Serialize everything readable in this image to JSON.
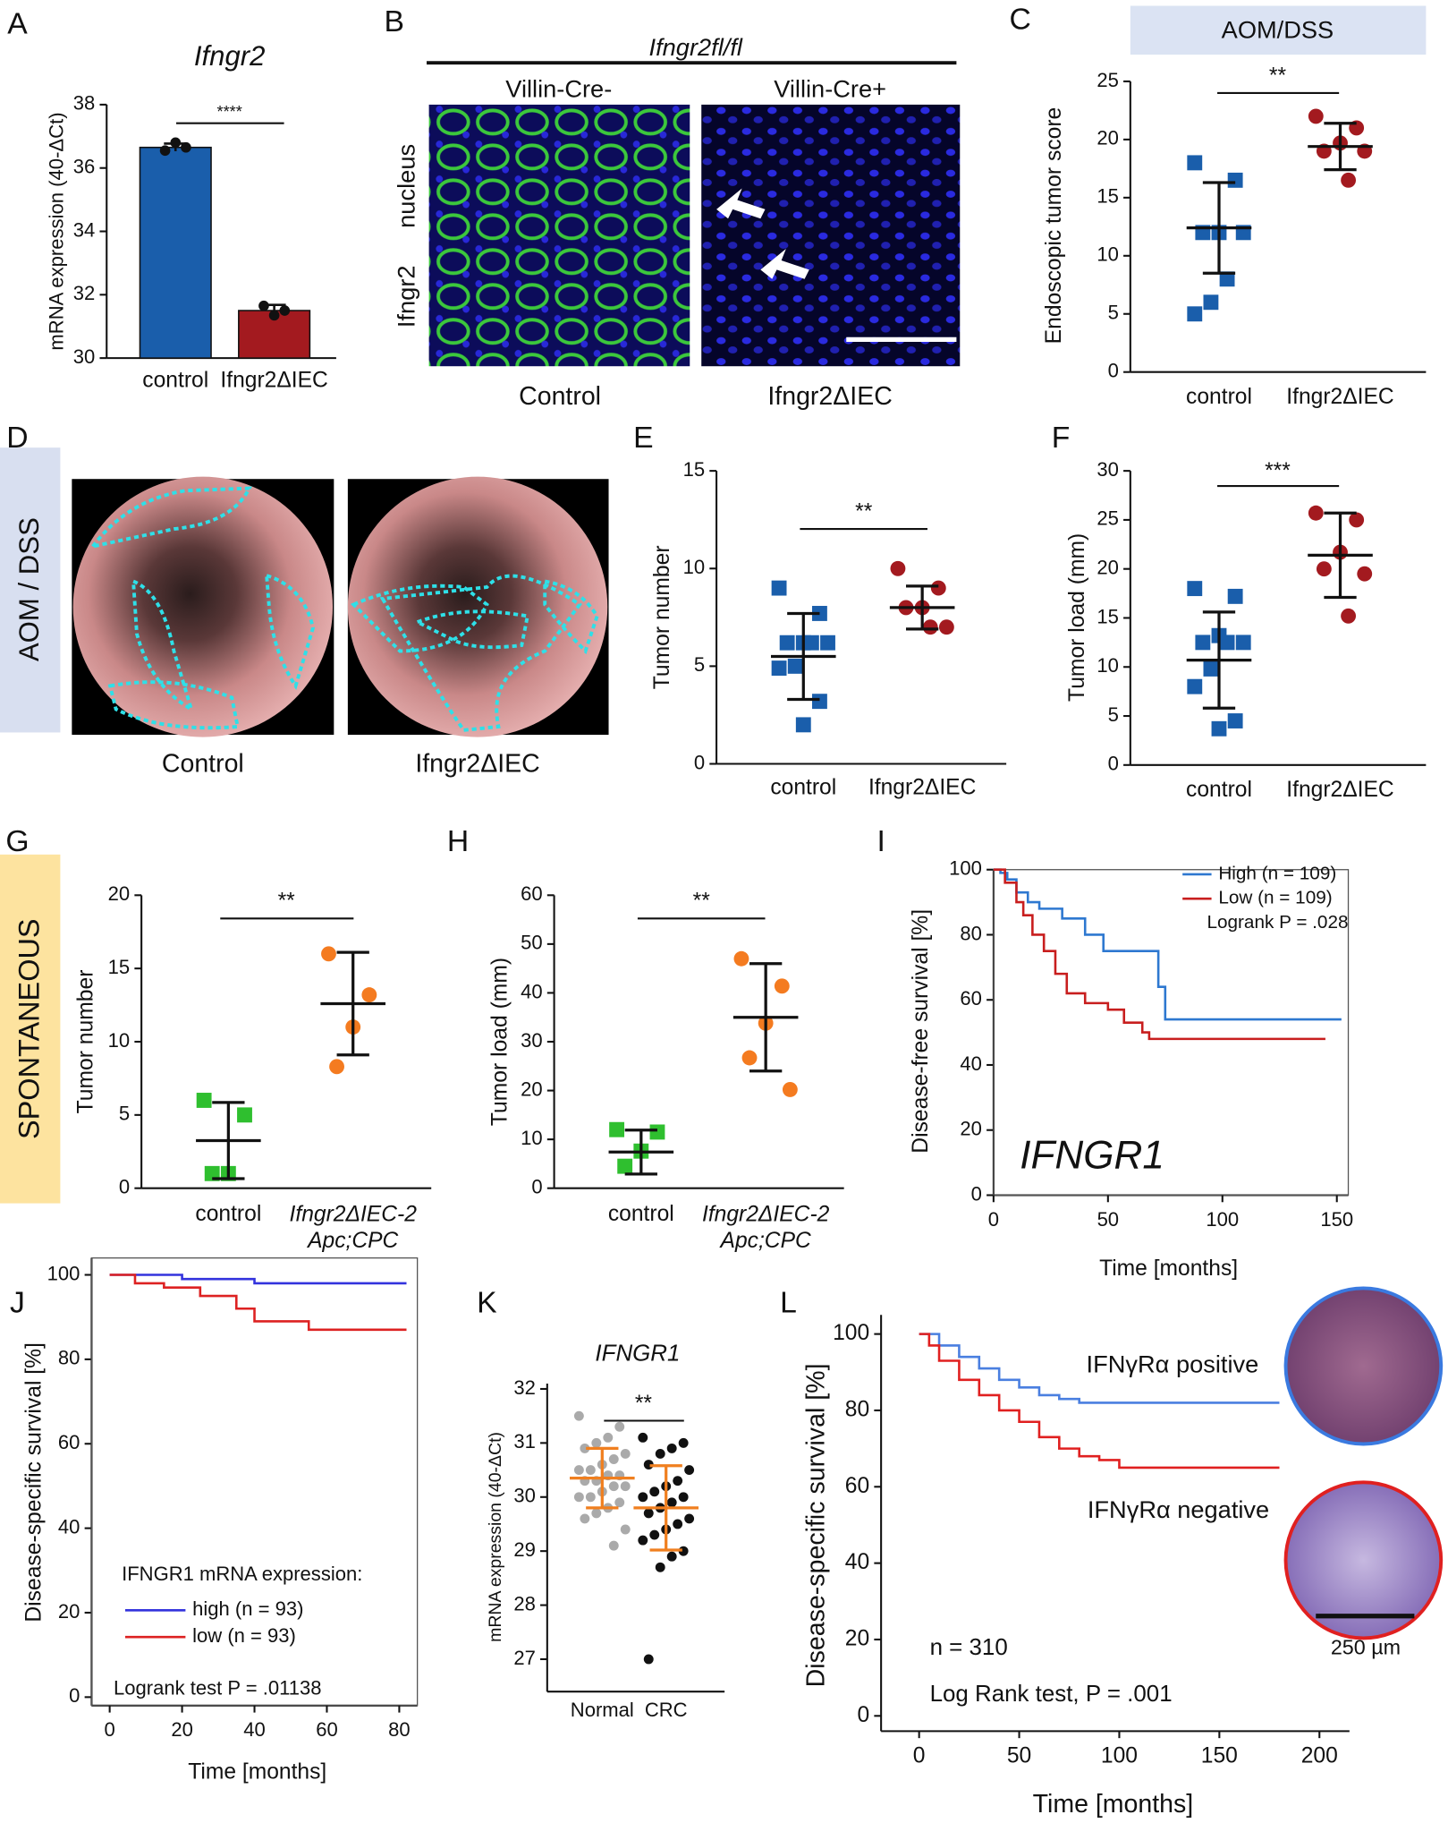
{
  "chart_data": [
    {
      "type": "bar",
      "panel": "A",
      "title": "Ifngr2",
      "y_label": "mRNA expression (40-ΔCt)",
      "categories": [
        "control",
        "Ifngr2ΔIEC"
      ],
      "values": [
        36.65,
        31.5
      ],
      "errors": [
        0.12,
        0.18
      ],
      "points": [
        [
          36.55,
          36.8,
          36.65
        ],
        [
          31.65,
          31.35,
          31.5
        ]
      ],
      "colors": [
        "#1a5eab",
        "#a31a1f"
      ],
      "ylim": [
        30,
        38
      ],
      "yticks": [
        30,
        32,
        34,
        36,
        38
      ],
      "significance": "****"
    },
    {
      "type": "image",
      "panel": "B",
      "header": "Ifngr2fl/fl",
      "titles": [
        "Villin-Cre-",
        "Villin-Cre+"
      ],
      "channel_labels": [
        "Ifngr2",
        "nucleus"
      ],
      "channel_colors": [
        "#2bb52b",
        "#2222cc"
      ],
      "captions": [
        "Control",
        "Ifngr2ΔIEC"
      ],
      "caption_colors": [
        "#2a72c0",
        "#c0282b"
      ]
    },
    {
      "type": "dot",
      "panel": "C",
      "header": "AOM/DSS",
      "y_label": "Endoscopic tumor score",
      "categories": [
        "control",
        "Ifngr2ΔIEC"
      ],
      "points": [
        [
          18,
          16.5,
          12,
          12,
          12,
          8,
          6,
          5
        ],
        [
          22,
          21,
          19.7,
          19,
          19,
          16.5
        ]
      ],
      "means": [
        12.4,
        19.4
      ],
      "sds": [
        3.9,
        2.0
      ],
      "colors": [
        "#1a5eab",
        "#a31a1f"
      ],
      "markers": [
        "square",
        "circle"
      ],
      "ylim": [
        0,
        25
      ],
      "yticks": [
        0,
        5,
        10,
        15,
        20,
        25
      ],
      "significance": "**"
    },
    {
      "type": "image",
      "panel": "D",
      "side_label": "AOM / DSS",
      "captions": [
        "Control",
        "Ifngr2ΔIEC"
      ],
      "caption_colors": [
        "#2a72c0",
        "#c0282b"
      ]
    },
    {
      "type": "dot",
      "panel": "E",
      "y_label": "Tumor number",
      "categories": [
        "control",
        "Ifngr2ΔIEC"
      ],
      "points": [
        [
          9,
          7.7,
          6.2,
          6.2,
          6.2,
          6.2,
          5,
          4.9,
          3.2,
          2
        ],
        [
          10,
          9,
          8,
          8,
          7,
          7
        ]
      ],
      "means": [
        5.5,
        8.0
      ],
      "sds": [
        2.2,
        1.1
      ],
      "colors": [
        "#1a5eab",
        "#a31a1f"
      ],
      "markers": [
        "square",
        "circle"
      ],
      "ylim": [
        0,
        15
      ],
      "yticks": [
        0,
        5,
        10,
        15
      ],
      "significance": "**"
    },
    {
      "type": "dot",
      "panel": "F",
      "y_label": "Tumor load (mm)",
      "categories": [
        "control",
        "Ifngr2ΔIEC"
      ],
      "points": [
        [
          18,
          17.2,
          13.2,
          12.5,
          12.5,
          12.5,
          9.8,
          8,
          4.5,
          3.7
        ],
        [
          25.7,
          25,
          21.7,
          20,
          19.5,
          15.2
        ]
      ],
      "means": [
        10.7,
        21.4
      ],
      "sds": [
        4.9,
        4.3
      ],
      "colors": [
        "#1a5eab",
        "#a31a1f"
      ],
      "markers": [
        "square",
        "circle"
      ],
      "ylim": [
        0,
        30
      ],
      "yticks": [
        0,
        5,
        10,
        15,
        20,
        25,
        30
      ],
      "significance": "***"
    },
    {
      "type": "dot",
      "panel": "G",
      "side_label": "SPONTANEOUS",
      "y_label": "Tumor number",
      "categories": [
        "control",
        "Ifngr2ΔIEC-2\nApc;CPC"
      ],
      "points": [
        [
          6,
          5,
          1,
          1
        ],
        [
          16,
          13.2,
          11,
          8.3
        ]
      ],
      "means": [
        3.25,
        12.6
      ],
      "sds": [
        2.6,
        3.5
      ],
      "colors": [
        "#2fbf2f",
        "#f47b20"
      ],
      "markers": [
        "square",
        "circle"
      ],
      "ylim": [
        0,
        20
      ],
      "yticks": [
        0,
        5,
        10,
        15,
        20
      ],
      "significance": "**"
    },
    {
      "type": "dot",
      "panel": "H",
      "y_label": "Tumor load (mm)",
      "categories": [
        "control",
        "Ifngr2ΔIEC-2\nApc;CPC"
      ],
      "points": [
        [
          12,
          11.5,
          7.6,
          4.5
        ],
        [
          47,
          41.4,
          33.8,
          26.7,
          20.2
        ]
      ],
      "means": [
        7.4,
        35
      ],
      "sds": [
        4.5,
        11
      ],
      "colors": [
        "#2fbf2f",
        "#f47b20"
      ],
      "markers": [
        "square",
        "circle"
      ],
      "ylim": [
        0,
        60
      ],
      "yticks": [
        0,
        10,
        20,
        30,
        40,
        50,
        60
      ],
      "significance": "**"
    },
    {
      "type": "survival",
      "panel": "I",
      "x_label": "Time [months]",
      "y_label": "Disease-free survival [%]",
      "series": [
        {
          "name": "High (n = 109)",
          "color": "#2e78d0",
          "x": [
            0,
            3,
            6,
            10,
            15,
            20,
            30,
            40,
            48,
            72,
            75,
            152
          ],
          "values": [
            100,
            99,
            97,
            93,
            90,
            88,
            85,
            80,
            75,
            64,
            54,
            54
          ]
        },
        {
          "name": "Low (n = 109)",
          "color": "#c81e1e",
          "x": [
            0,
            5,
            10,
            13,
            17,
            22,
            27,
            32,
            40,
            50,
            57,
            65,
            68,
            145
          ],
          "values": [
            100,
            96,
            90,
            86,
            80,
            75,
            68,
            62,
            59,
            57,
            53,
            50,
            48,
            48
          ]
        }
      ],
      "annotations": [
        "Logrank P = .028",
        "IFNGR1"
      ],
      "xlim": [
        0,
        155
      ],
      "xticks": [
        0,
        50,
        100,
        150
      ],
      "ylim": [
        0,
        100
      ],
      "yticks": [
        0,
        20,
        40,
        60,
        80,
        100
      ],
      "box": true
    },
    {
      "type": "survival",
      "panel": "J",
      "x_label": "Time [months]",
      "y_label": "Disease-specific survival [%]",
      "series": [
        {
          "name": "high (n = 93)",
          "color": "#3333dd",
          "x": [
            0,
            20,
            40,
            82
          ],
          "values": [
            100,
            99,
            98,
            98
          ]
        },
        {
          "name": "low (n = 93)",
          "color": "#dd2222",
          "x": [
            0,
            7,
            15,
            25,
            35,
            40,
            55,
            82
          ],
          "values": [
            100,
            98,
            97,
            95,
            92,
            89,
            87,
            87
          ]
        }
      ],
      "annotations": [
        "IFNGR1 mRNA expression:",
        "Logrank test P = .01138"
      ],
      "xlim": [
        -5,
        85
      ],
      "xticks": [
        0,
        20,
        40,
        60,
        80
      ],
      "ylim": [
        -2,
        104
      ],
      "yticks": [
        0,
        20,
        40,
        60,
        80,
        100
      ],
      "box": true
    },
    {
      "type": "dot",
      "panel": "K",
      "title": "IFNGR1",
      "y_label": "mRNA expression (40-ΔCt)",
      "categories": [
        "Normal",
        "CRC"
      ],
      "points": [
        [
          31.5,
          31.3,
          31.1,
          31.0,
          30.9,
          30.8,
          30.7,
          30.6,
          30.5,
          30.5,
          30.4,
          30.4,
          30.3,
          30.3,
          30.2,
          30.2,
          30.1,
          30.0,
          30.0,
          29.9,
          29.8,
          29.7,
          29.6,
          29.4,
          29.1
        ],
        [
          31.1,
          31.0,
          30.9,
          30.8,
          30.6,
          30.5,
          30.3,
          30.2,
          30.1,
          30.0,
          30.0,
          29.9,
          29.8,
          29.7,
          29.6,
          29.5,
          29.4,
          29.3,
          29.2,
          29.0,
          28.9,
          28.7,
          27.0
        ]
      ],
      "means": [
        30.35,
        29.8
      ],
      "sds": [
        0.55,
        0.78
      ],
      "colors": [
        "#aaaaaa",
        "#111111"
      ],
      "markers": [
        "circle",
        "circle"
      ],
      "error_color": "#f07f1f",
      "ylim": [
        26.4,
        32.1
      ],
      "yticks": [
        27,
        28,
        29,
        30,
        31,
        32
      ],
      "significance": "**"
    },
    {
      "type": "survival",
      "panel": "L",
      "x_label": "Time [months]",
      "y_label": "Disease-specific survival [%]",
      "series": [
        {
          "name": "IFNγRα positive",
          "color": "#4a7fe0",
          "x": [
            0,
            10,
            20,
            30,
            40,
            50,
            60,
            70,
            80,
            180
          ],
          "values": [
            100,
            97,
            94,
            91,
            88,
            86,
            84,
            83,
            82,
            82
          ]
        },
        {
          "name": "IFNγRα negative",
          "color": "#e02020",
          "x": [
            0,
            5,
            10,
            20,
            30,
            40,
            50,
            60,
            70,
            80,
            90,
            100,
            180
          ],
          "values": [
            100,
            97,
            93,
            88,
            84,
            80,
            77,
            73,
            70,
            68,
            67,
            65,
            65
          ]
        }
      ],
      "annotations": [
        "n = 310",
        "Log Rank test, P = .001",
        "250 µm"
      ],
      "xlim": [
        -19,
        215
      ],
      "xticks": [
        0,
        50,
        100,
        150,
        200
      ],
      "ylim": [
        -4,
        105
      ],
      "yticks": [
        0,
        20,
        40,
        60,
        80,
        100
      ],
      "box": false
    }
  ]
}
